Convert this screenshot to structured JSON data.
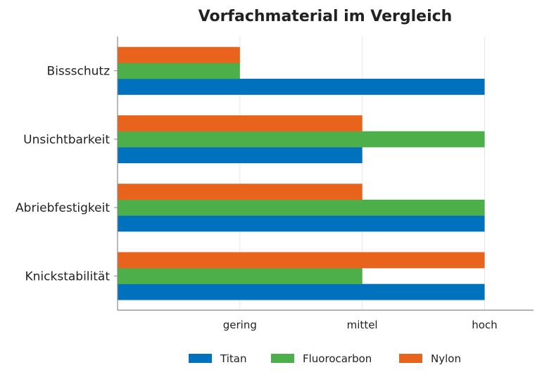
{
  "chart_data": {
    "type": "bar",
    "orientation": "horizontal",
    "title": "Vorfachmaterial im Vergleich",
    "categories": [
      "Bissschutz",
      "Unsichtbarkeit",
      "Abriebfestigkeit",
      "Knickstabilität"
    ],
    "xticks": [
      {
        "value": 1,
        "label": "gering"
      },
      {
        "value": 2,
        "label": "mittel"
      },
      {
        "value": 3,
        "label": "hoch"
      }
    ],
    "xlim": [
      0,
      3.4
    ],
    "series": [
      {
        "name": "Titan",
        "color": "#0072bd",
        "values": [
          3,
          2,
          3,
          3
        ]
      },
      {
        "name": "Fluorocarbon",
        "color": "#4daf4a",
        "values": [
          1,
          3,
          3,
          2
        ]
      },
      {
        "name": "Nylon",
        "color": "#e8631c",
        "values": [
          1,
          2,
          2,
          3
        ]
      }
    ],
    "grid": "x",
    "legend_position": "bottom-center"
  }
}
